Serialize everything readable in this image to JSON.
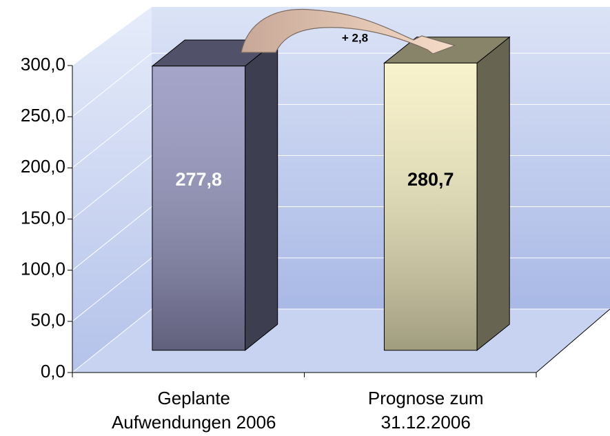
{
  "chart_data": {
    "type": "bar3d",
    "categories": [
      "Geplante\nAufwendungen 2006",
      "Prognose zum\n31.12.2006"
    ],
    "values": [
      277.8,
      280.7
    ],
    "value_labels": [
      "277,8",
      "280,7"
    ],
    "colors": [
      "#9494c0",
      "#f6f0c2"
    ],
    "annotation": "+ 2,8",
    "ylim": [
      0,
      300
    ],
    "yticks": [
      {
        "value": 0,
        "label": "0,0"
      },
      {
        "value": 50,
        "label": "50,0"
      },
      {
        "value": 100,
        "label": "100,0"
      },
      {
        "value": 150,
        "label": "150,0"
      },
      {
        "value": 200,
        "label": "200,0"
      },
      {
        "value": 250,
        "label": "250,0"
      },
      {
        "value": 300,
        "label": "300,0"
      }
    ],
    "grid": true
  }
}
